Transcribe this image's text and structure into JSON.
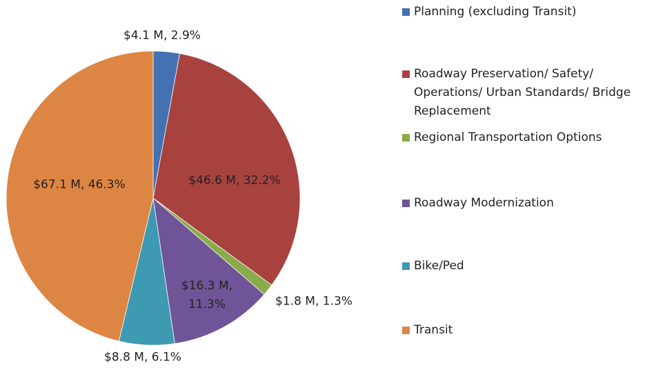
{
  "chart_data": {
    "type": "pie",
    "categories": [
      "Planning (excluding Transit)",
      "Roadway Preservation/ Safety/ Operations/ Urban Standards/ Bridge Replacement",
      "Regional Transportation Options",
      "Roadway Modernization",
      "Bike/Ped",
      "Transit"
    ],
    "values": [
      2.9,
      32.2,
      1.3,
      11.3,
      6.1,
      46.3
    ],
    "value_labels": [
      "$4.1 M, 2.9%",
      "$46.6 M, 32.2%",
      "$1.8 M, 1.3%",
      "$16.3 M, 11.3%",
      "$8.8 M, 6.1%",
      "$67.1 M, 46.3%"
    ],
    "colors": [
      "#4471b2",
      "#a8423f",
      "#8aab4a",
      "#6f5597",
      "#3e99b2",
      "#dd8543"
    ],
    "legend": "right"
  }
}
